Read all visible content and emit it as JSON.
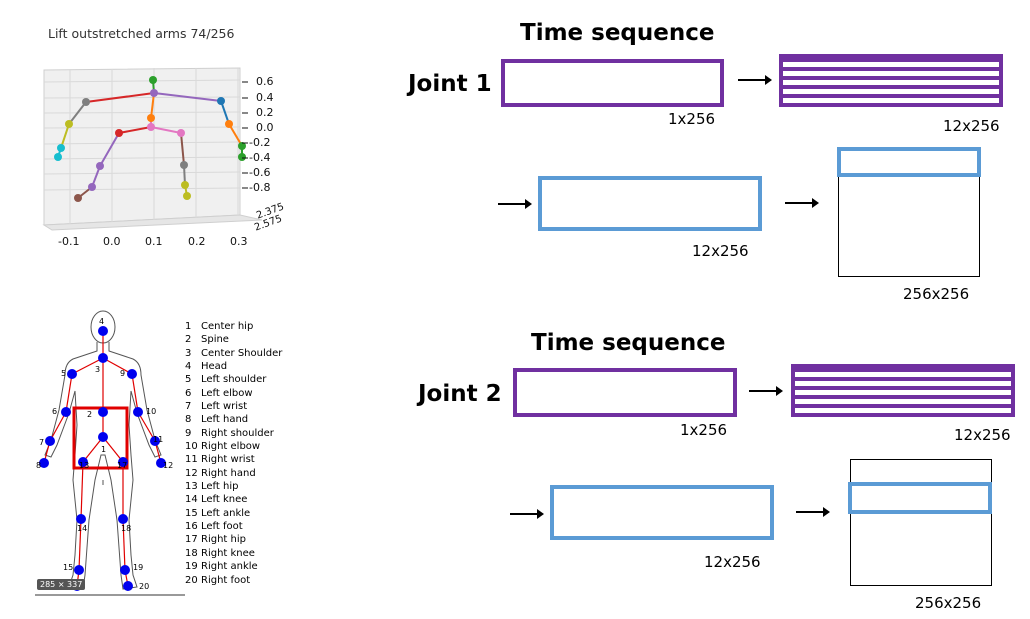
{
  "plot_panel": {
    "title": "Lift outstretched arms 74/256",
    "x_ticks": [
      "-0.1",
      "0.0",
      "0.1",
      "0.2",
      "0.3"
    ],
    "z_ticks": [
      "0.6",
      "0.4",
      "0.2",
      "0.0",
      "-0.2",
      "-0.4",
      "-0.6",
      "-0.8"
    ],
    "depth_ticks": [
      "2.375",
      "2.575"
    ]
  },
  "body_panel": {
    "legend": [
      {
        "num": "1",
        "label": "Center hip"
      },
      {
        "num": "2",
        "label": "Spine"
      },
      {
        "num": "3",
        "label": "Center Shoulder"
      },
      {
        "num": "4",
        "label": "Head"
      },
      {
        "num": "5",
        "label": "Left shoulder"
      },
      {
        "num": "6",
        "label": "Left elbow"
      },
      {
        "num": "7",
        "label": "Left wrist"
      },
      {
        "num": "8",
        "label": "Left hand"
      },
      {
        "num": "9",
        "label": "Right shoulder"
      },
      {
        "num": "10",
        "label": "Right elbow"
      },
      {
        "num": "11",
        "label": "Right wrist"
      },
      {
        "num": "12",
        "label": "Right hand"
      },
      {
        "num": "13",
        "label": "Left hip"
      },
      {
        "num": "14",
        "label": "Left knee"
      },
      {
        "num": "15",
        "label": "Left ankle"
      },
      {
        "num": "16",
        "label": "Left foot"
      },
      {
        "num": "17",
        "label": "Right hip"
      },
      {
        "num": "18",
        "label": "Right knee"
      },
      {
        "num": "19",
        "label": "Right ankle"
      },
      {
        "num": "20",
        "label": "Right foot"
      }
    ],
    "size_badge": "285 × 337"
  },
  "joint1": {
    "heading": "Time sequence",
    "label": "Joint 1",
    "input_dim": "1x256",
    "expanded_dim": "12x256",
    "embed_dim": "12x256",
    "matrix_dim": "256x256"
  },
  "joint2": {
    "heading": "Time sequence",
    "label": "Joint 2",
    "input_dim": "1x256",
    "expanded_dim": "12x256",
    "embed_dim": "12x256",
    "matrix_dim": "256x256"
  },
  "colors": {
    "sequence_box": "#7030a0",
    "embedding_box": "#5b9bd5",
    "joint_marker": "#0000ee",
    "skeleton_line": "#e00000",
    "highlight_box": "#e00000"
  }
}
